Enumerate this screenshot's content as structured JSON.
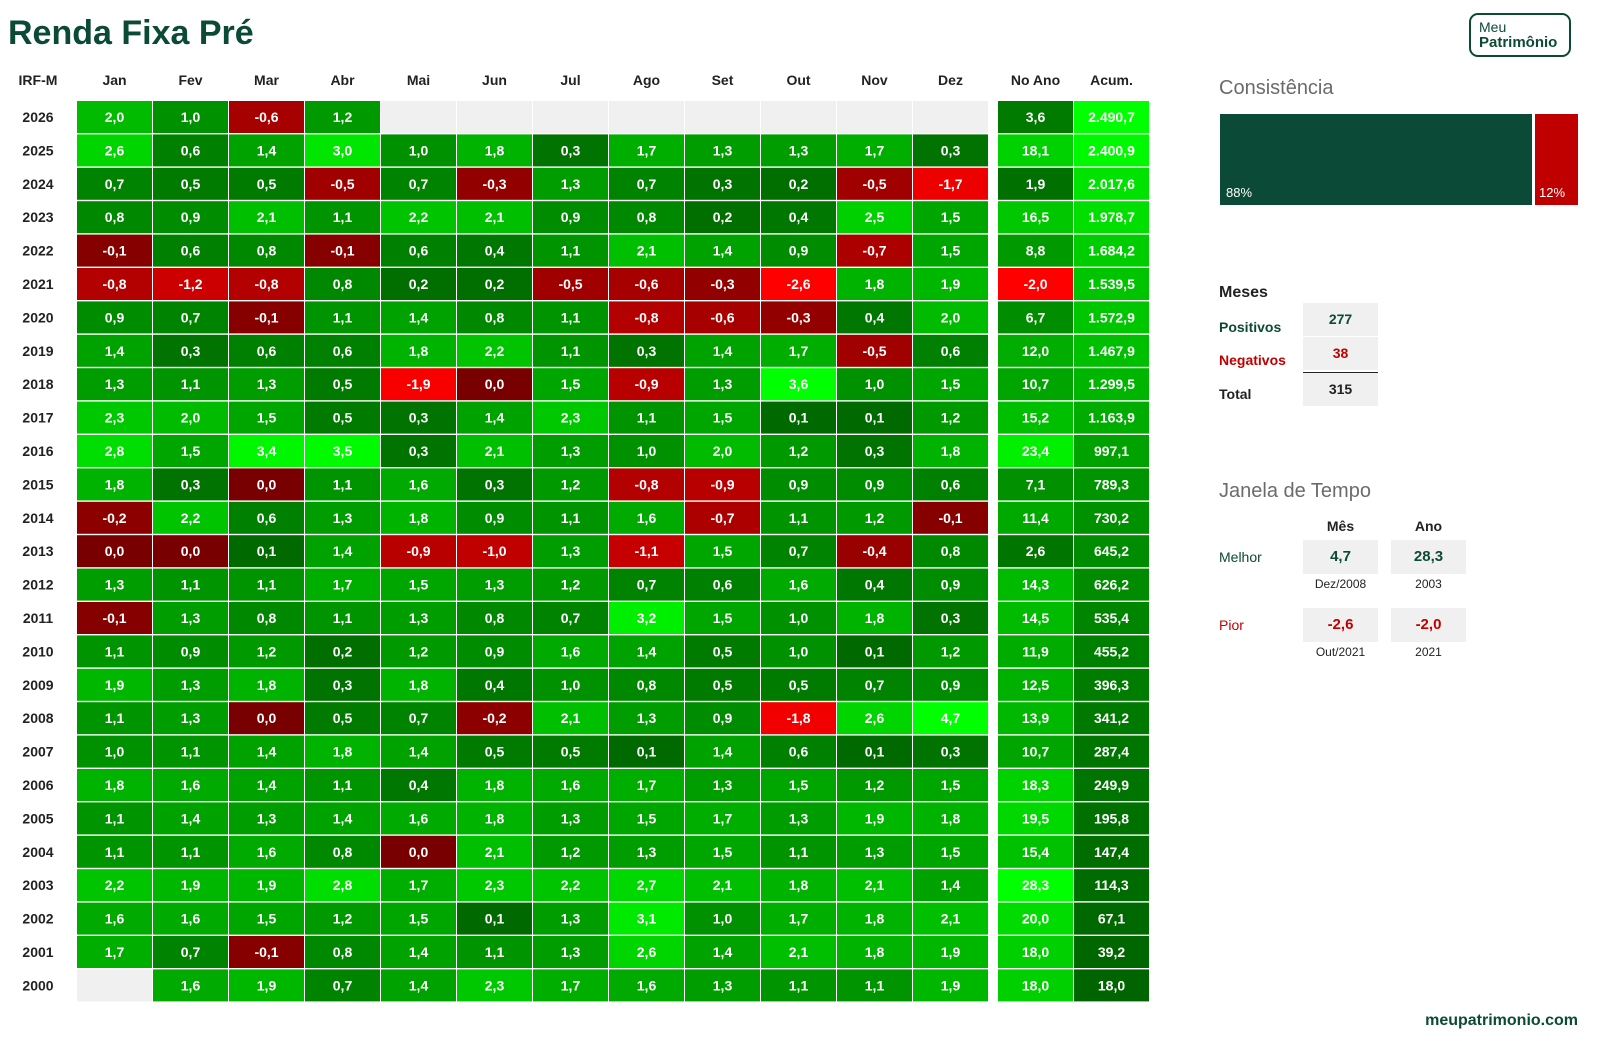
{
  "page": {
    "title": "Renda Fixa Pré",
    "site": "meupatrimonio.com"
  },
  "logo": {
    "line1": "Meu",
    "line2": "Patrimônio"
  },
  "colors": {
    "brand": "#0b4a36",
    "negative_text": "#c00000",
    "empty_cell": "#f0f0f0"
  },
  "chart_data": {
    "type": "heatmap",
    "row_header": "IRF-M",
    "columns": [
      "Jan",
      "Fev",
      "Mar",
      "Abr",
      "Mai",
      "Jun",
      "Jul",
      "Ago",
      "Set",
      "Out",
      "Nov",
      "Dez"
    ],
    "total_columns": [
      "No Ano",
      "Acum."
    ],
    "rows": [
      {
        "year": "2026",
        "months": [
          "2,0",
          "1,0",
          "-0,6",
          "1,2",
          null,
          null,
          null,
          null,
          null,
          null,
          null,
          null
        ],
        "no_ano": "3,6",
        "acum": "2.490,7"
      },
      {
        "year": "2025",
        "months": [
          "2,6",
          "0,6",
          "1,4",
          "3,0",
          "1,0",
          "1,8",
          "0,3",
          "1,7",
          "1,3",
          "1,3",
          "1,7",
          "0,3"
        ],
        "no_ano": "18,1",
        "acum": "2.400,9"
      },
      {
        "year": "2024",
        "months": [
          "0,7",
          "0,5",
          "0,5",
          "-0,5",
          "0,7",
          "-0,3",
          "1,3",
          "0,7",
          "0,3",
          "0,2",
          "-0,5",
          "-1,7"
        ],
        "no_ano": "1,9",
        "acum": "2.017,6"
      },
      {
        "year": "2023",
        "months": [
          "0,8",
          "0,9",
          "2,1",
          "1,1",
          "2,2",
          "2,1",
          "0,9",
          "0,8",
          "0,2",
          "0,4",
          "2,5",
          "1,5"
        ],
        "no_ano": "16,5",
        "acum": "1.978,7"
      },
      {
        "year": "2022",
        "months": [
          "-0,1",
          "0,6",
          "0,8",
          "-0,1",
          "0,6",
          "0,4",
          "1,1",
          "2,1",
          "1,4",
          "0,9",
          "-0,7",
          "1,5"
        ],
        "no_ano": "8,8",
        "acum": "1.684,2"
      },
      {
        "year": "2021",
        "months": [
          "-0,8",
          "-1,2",
          "-0,8",
          "0,8",
          "0,2",
          "0,2",
          "-0,5",
          "-0,6",
          "-0,3",
          "-2,6",
          "1,8",
          "1,9"
        ],
        "no_ano": "-2,0",
        "acum": "1.539,5"
      },
      {
        "year": "2020",
        "months": [
          "0,9",
          "0,7",
          "-0,1",
          "1,1",
          "1,4",
          "0,8",
          "1,1",
          "-0,8",
          "-0,6",
          "-0,3",
          "0,4",
          "2,0"
        ],
        "no_ano": "6,7",
        "acum": "1.572,9"
      },
      {
        "year": "2019",
        "months": [
          "1,4",
          "0,3",
          "0,6",
          "0,6",
          "1,8",
          "2,2",
          "1,1",
          "0,3",
          "1,4",
          "1,7",
          "-0,5",
          "0,6"
        ],
        "no_ano": "12,0",
        "acum": "1.467,9"
      },
      {
        "year": "2018",
        "months": [
          "1,3",
          "1,1",
          "1,3",
          "0,5",
          "-1,9",
          "0,0",
          "1,5",
          "-0,9",
          "1,3",
          "3,6",
          "1,0",
          "1,5"
        ],
        "no_ano": "10,7",
        "acum": "1.299,5"
      },
      {
        "year": "2017",
        "months": [
          "2,3",
          "2,0",
          "1,5",
          "0,5",
          "0,3",
          "1,4",
          "2,3",
          "1,1",
          "1,5",
          "0,1",
          "0,1",
          "1,2"
        ],
        "no_ano": "15,2",
        "acum": "1.163,9"
      },
      {
        "year": "2016",
        "months": [
          "2,8",
          "1,5",
          "3,4",
          "3,5",
          "0,3",
          "2,1",
          "1,3",
          "1,0",
          "2,0",
          "1,2",
          "0,3",
          "1,8"
        ],
        "no_ano": "23,4",
        "acum": "997,1"
      },
      {
        "year": "2015",
        "months": [
          "1,8",
          "0,3",
          "0,0",
          "1,1",
          "1,6",
          "0,3",
          "1,2",
          "-0,8",
          "-0,9",
          "0,9",
          "0,9",
          "0,6"
        ],
        "no_ano": "7,1",
        "acum": "789,3"
      },
      {
        "year": "2014",
        "months": [
          "-0,2",
          "2,2",
          "0,6",
          "1,3",
          "1,8",
          "0,9",
          "1,1",
          "1,6",
          "-0,7",
          "1,1",
          "1,2",
          "-0,1"
        ],
        "no_ano": "11,4",
        "acum": "730,2"
      },
      {
        "year": "2013",
        "months": [
          "0,0",
          "0,0",
          "0,1",
          "1,4",
          "-0,9",
          "-1,0",
          "1,3",
          "-1,1",
          "1,5",
          "0,7",
          "-0,4",
          "0,8"
        ],
        "no_ano": "2,6",
        "acum": "645,2"
      },
      {
        "year": "2012",
        "months": [
          "1,3",
          "1,1",
          "1,1",
          "1,7",
          "1,5",
          "1,3",
          "1,2",
          "0,7",
          "0,6",
          "1,6",
          "0,4",
          "0,9"
        ],
        "no_ano": "14,3",
        "acum": "626,2"
      },
      {
        "year": "2011",
        "months": [
          "-0,1",
          "1,3",
          "0,8",
          "1,1",
          "1,3",
          "0,8",
          "0,7",
          "3,2",
          "1,5",
          "1,0",
          "1,8",
          "0,3"
        ],
        "no_ano": "14,5",
        "acum": "535,4"
      },
      {
        "year": "2010",
        "months": [
          "1,1",
          "0,9",
          "1,2",
          "0,2",
          "1,2",
          "0,9",
          "1,6",
          "1,4",
          "0,5",
          "1,0",
          "0,1",
          "1,2"
        ],
        "no_ano": "11,9",
        "acum": "455,2"
      },
      {
        "year": "2009",
        "months": [
          "1,9",
          "1,3",
          "1,8",
          "0,3",
          "1,8",
          "0,4",
          "1,0",
          "0,8",
          "0,5",
          "0,5",
          "0,7",
          "0,9"
        ],
        "no_ano": "12,5",
        "acum": "396,3"
      },
      {
        "year": "2008",
        "months": [
          "1,1",
          "1,3",
          "0,0",
          "0,5",
          "0,7",
          "-0,2",
          "2,1",
          "1,3",
          "0,9",
          "-1,8",
          "2,6",
          "4,7"
        ],
        "no_ano": "13,9",
        "acum": "341,2"
      },
      {
        "year": "2007",
        "months": [
          "1,0",
          "1,1",
          "1,4",
          "1,8",
          "1,4",
          "0,5",
          "0,5",
          "0,1",
          "1,4",
          "0,6",
          "0,1",
          "0,3"
        ],
        "no_ano": "10,7",
        "acum": "287,4"
      },
      {
        "year": "2006",
        "months": [
          "1,8",
          "1,6",
          "1,4",
          "1,1",
          "0,4",
          "1,8",
          "1,6",
          "1,7",
          "1,3",
          "1,5",
          "1,2",
          "1,5"
        ],
        "no_ano": "18,3",
        "acum": "249,9"
      },
      {
        "year": "2005",
        "months": [
          "1,1",
          "1,4",
          "1,3",
          "1,4",
          "1,6",
          "1,8",
          "1,3",
          "1,5",
          "1,7",
          "1,3",
          "1,9",
          "1,8"
        ],
        "no_ano": "19,5",
        "acum": "195,8"
      },
      {
        "year": "2004",
        "months": [
          "1,1",
          "1,1",
          "1,6",
          "0,8",
          "0,0",
          "2,1",
          "1,2",
          "1,3",
          "1,5",
          "1,1",
          "1,3",
          "1,5"
        ],
        "no_ano": "15,4",
        "acum": "147,4"
      },
      {
        "year": "2003",
        "months": [
          "2,2",
          "1,9",
          "1,9",
          "2,8",
          "1,7",
          "2,3",
          "2,2",
          "2,7",
          "2,1",
          "1,8",
          "2,1",
          "1,4"
        ],
        "no_ano": "28,3",
        "acum": "114,3"
      },
      {
        "year": "2002",
        "months": [
          "1,6",
          "1,6",
          "1,5",
          "1,2",
          "1,5",
          "0,1",
          "1,3",
          "3,1",
          "1,0",
          "1,7",
          "1,8",
          "2,1"
        ],
        "no_ano": "20,0",
        "acum": "67,1"
      },
      {
        "year": "2001",
        "months": [
          "1,7",
          "0,7",
          "-0,1",
          "0,8",
          "1,4",
          "1,1",
          "1,3",
          "2,6",
          "1,4",
          "2,1",
          "1,8",
          "1,9"
        ],
        "no_ano": "18,0",
        "acum": "39,2"
      },
      {
        "year": "2000",
        "months": [
          null,
          "1,6",
          "1,9",
          "0,7",
          "1,4",
          "2,3",
          "1,7",
          "1,6",
          "1,3",
          "1,1",
          "1,1",
          "1,9"
        ],
        "no_ano": "18,0",
        "acum": "18,0"
      }
    ]
  },
  "consistency": {
    "title": "Consistência",
    "positive_share": 0.88,
    "positive_label": "88%",
    "negative_label": "12%"
  },
  "months_summary": {
    "title": "Meses",
    "positive_label": "Positivos",
    "positive_value": "277",
    "negative_label": "Negativos",
    "negative_value": "38",
    "total_label": "Total",
    "total_value": "315"
  },
  "time_window": {
    "title": "Janela de Tempo",
    "col_month": "Mês",
    "col_year": "Ano",
    "best_label": "Melhor",
    "best_month": "4,7",
    "best_month_date": "Dez/2008",
    "best_year": "28,3",
    "best_year_date": "2003",
    "worst_label": "Pior",
    "worst_month": "-2,6",
    "worst_month_date": "Out/2021",
    "worst_year": "-2,0",
    "worst_year_date": "2021"
  }
}
